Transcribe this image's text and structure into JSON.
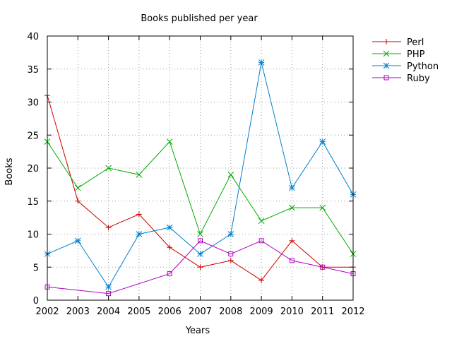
{
  "chart_data": {
    "type": "line",
    "title": "Books published per year",
    "xlabel": "Years",
    "ylabel": "Books",
    "x": [
      2002,
      2003,
      2004,
      2005,
      2006,
      2007,
      2008,
      2009,
      2010,
      2011,
      2012
    ],
    "xlim": [
      2002,
      2012
    ],
    "ylim": [
      0,
      40
    ],
    "yticks": [
      0,
      5,
      10,
      15,
      20,
      25,
      30,
      35,
      40
    ],
    "grid": true,
    "legend_position": "top-right outside",
    "series": [
      {
        "name": "Perl",
        "color": "#cc0000",
        "marker": "plus",
        "x": [
          2002,
          2003,
          2004,
          2005,
          2006,
          2007,
          2008,
          2009,
          2010,
          2011,
          2012
        ],
        "values": [
          31,
          15,
          11,
          13,
          8,
          5,
          6,
          3,
          9,
          5,
          5
        ]
      },
      {
        "name": "PHP",
        "color": "#00aa00",
        "marker": "cross",
        "x": [
          2002,
          2003,
          2004,
          2005,
          2006,
          2007,
          2008,
          2009,
          2010,
          2011,
          2012
        ],
        "values": [
          24,
          17,
          20,
          19,
          24,
          10,
          19,
          12,
          14,
          14,
          7
        ]
      },
      {
        "name": "Python",
        "color": "#0080cc",
        "marker": "star",
        "x": [
          2002,
          2003,
          2004,
          2005,
          2006,
          2007,
          2008,
          2009,
          2010,
          2011,
          2012
        ],
        "values": [
          7,
          9,
          2,
          10,
          11,
          7,
          10,
          36,
          17,
          24,
          16
        ]
      },
      {
        "name": "Ruby",
        "color": "#b000c0",
        "marker": "square",
        "x": [
          2002,
          2004,
          2006,
          2007,
          2008,
          2009,
          2010,
          2011,
          2012
        ],
        "values": [
          2,
          1,
          4,
          9,
          7,
          9,
          6,
          5,
          4
        ]
      }
    ]
  }
}
